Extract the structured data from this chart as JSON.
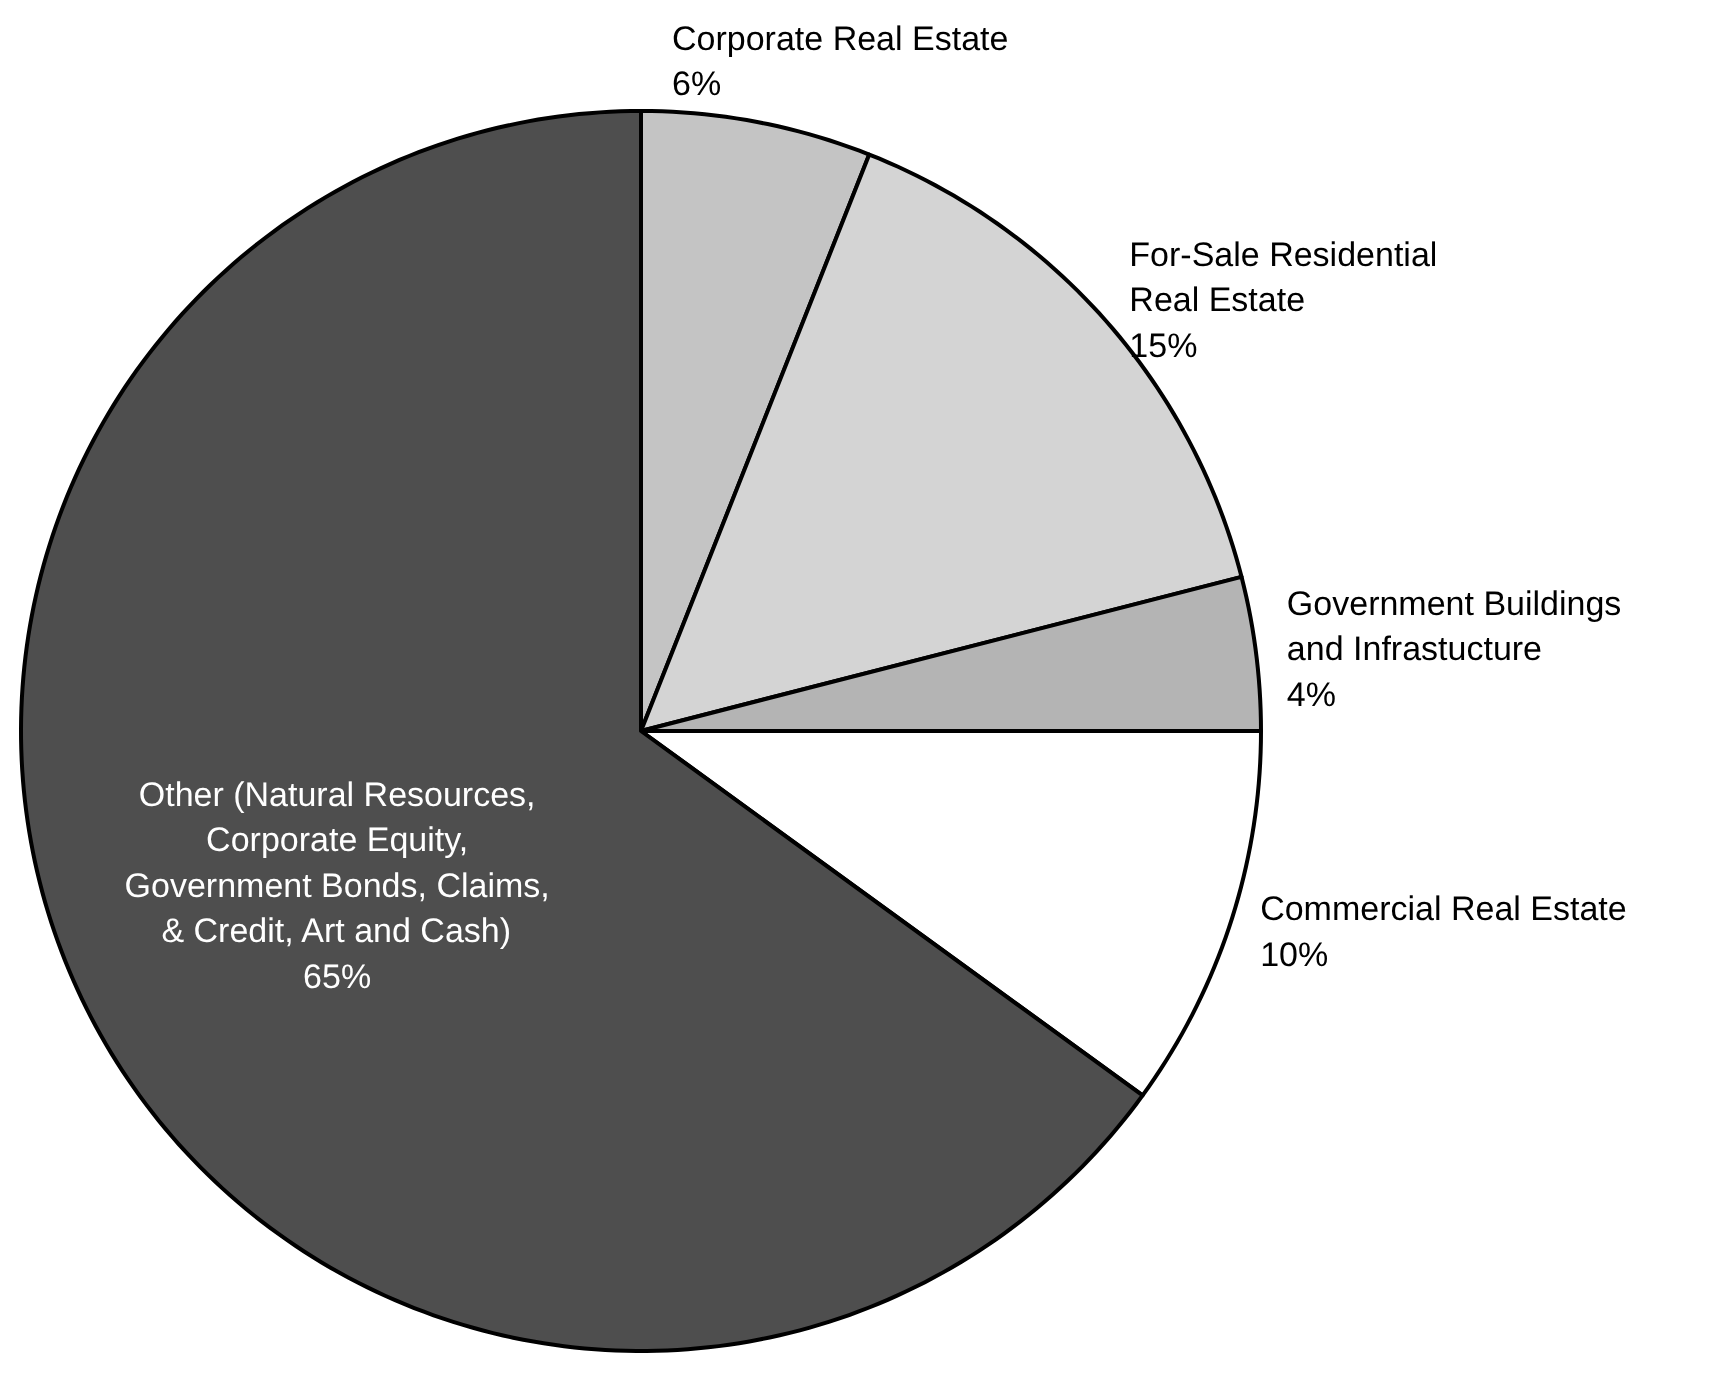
{
  "chart_data": {
    "type": "pie",
    "categories": [
      "Corporate Real Estate",
      "For-Sale Residential\nReal Estate",
      "Government Buildings\nand Infrastucture",
      "Commercial Real Estate",
      "Other (Natural Resources,\nCorporate Equity,\nGovernment Bonds, Claims,\n& Credit, Art and Cash)"
    ],
    "values": [
      6,
      15,
      4,
      10,
      65
    ],
    "colors": [
      "#c4c4c4",
      "#d4d4d4",
      "#b4b4b4",
      "#ffffff",
      "#4e4e4e"
    ],
    "value_labels": [
      "6%",
      "15%",
      "4%",
      "10%",
      "65%"
    ]
  }
}
